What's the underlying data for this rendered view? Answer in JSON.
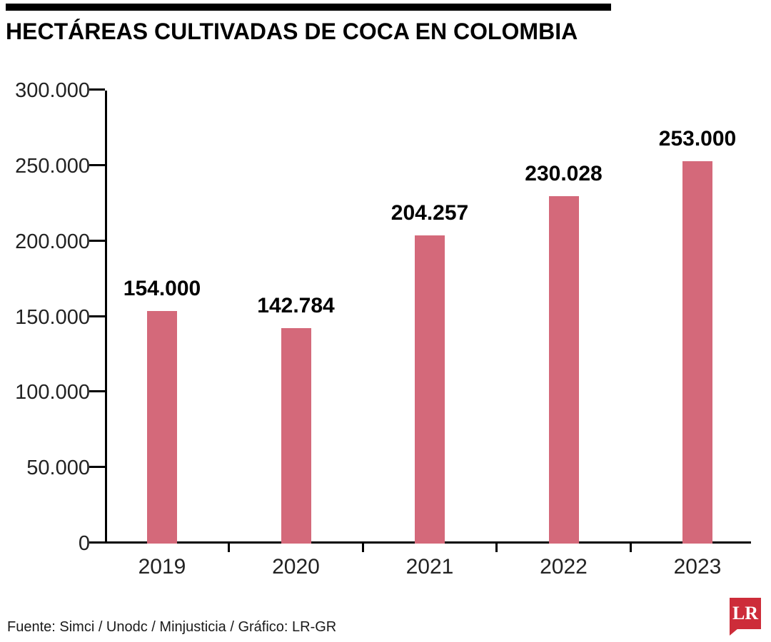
{
  "header": {
    "title": "HECTÁREAS CULTIVADAS DE COCA EN COLOMBIA"
  },
  "chart_data": {
    "type": "bar",
    "title": "HECTÁREAS CULTIVADAS DE COCA EN COLOMBIA",
    "categories": [
      "2019",
      "2020",
      "2021",
      "2022",
      "2023"
    ],
    "values": [
      154000,
      142784,
      204257,
      230028,
      253000
    ],
    "value_labels": [
      "154.000",
      "142.784",
      "204.257",
      "230.028",
      "253.000"
    ],
    "xlabel": "",
    "ylabel": "",
    "ylim": [
      0,
      300000
    ],
    "ytick_step": 50000,
    "ytick_labels": [
      "0",
      "50.000",
      "100.000",
      "150.000",
      "200.000",
      "250.000",
      "300.000"
    ],
    "grid": false,
    "legend": "none",
    "bar_color": "#d4697a"
  },
  "footer": {
    "source": "Fuente: Simci / Unodc / Minjusticia / Gráfico: LR-GR",
    "logo_text": "LR",
    "logo_color": "#cd2c39"
  }
}
